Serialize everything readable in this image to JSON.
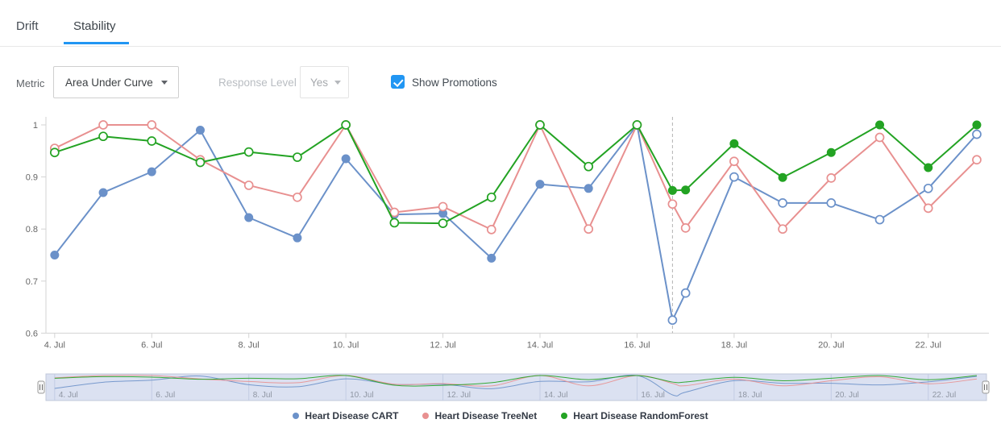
{
  "tabs": {
    "items": [
      {
        "label": "Drift",
        "active": false
      },
      {
        "label": "Stability",
        "active": true
      }
    ]
  },
  "controls": {
    "metric_label": "Metric",
    "metric_value": "Area Under Curve",
    "response_label": "Response Level",
    "response_value": "Yes",
    "show_promotions_label": "Show Promotions",
    "show_promotions_checked": true
  },
  "colors": {
    "accent_blue": "#2196f3",
    "axis_text": "#666666",
    "axis_line": "#d3d3d3",
    "promo_line": "#b3b3b3",
    "navigator_bg": "#dbe1f1",
    "navigator_border": "#c0c8da",
    "navigator_grid": "#c3cce4",
    "navigator_text": "#8f96a3",
    "handle_fill": "#f7f7f7",
    "handle_stroke": "#999999"
  },
  "chart_data": {
    "type": "line",
    "title": "",
    "xlabel": "",
    "ylabel": "",
    "x_unit": "day of July",
    "ylim": [
      0.6,
      1.0
    ],
    "gridlines": "none",
    "legend_position": "bottom",
    "x": [
      4,
      5,
      6,
      7,
      8,
      9,
      10,
      11,
      12,
      13,
      14,
      15,
      16,
      16.73,
      17,
      18,
      19,
      20,
      21,
      22,
      23
    ],
    "promo_index": 13,
    "promotion_line_x": 16.73,
    "x_axis_ticks": [
      {
        "x": 4,
        "label": "4. Jul"
      },
      {
        "x": 6,
        "label": "6. Jul"
      },
      {
        "x": 8,
        "label": "8. Jul"
      },
      {
        "x": 10,
        "label": "10. Jul"
      },
      {
        "x": 12,
        "label": "12. Jul"
      },
      {
        "x": 14,
        "label": "14. Jul"
      },
      {
        "x": 16,
        "label": "16. Jul"
      },
      {
        "x": 18,
        "label": "18. Jul"
      },
      {
        "x": 20,
        "label": "20. Jul"
      },
      {
        "x": 22,
        "label": "22. Jul"
      }
    ],
    "y_axis_ticks": [
      {
        "v": 1.0,
        "label": "1"
      },
      {
        "v": 0.9,
        "label": "0.9"
      },
      {
        "v": 0.8,
        "label": "0.8"
      },
      {
        "v": 0.7,
        "label": "0.7"
      },
      {
        "v": 0.6,
        "label": "0.6"
      }
    ],
    "series": [
      {
        "name": "Heart Disease CART",
        "color": "#6b91c9",
        "marker_before_promo": "filled",
        "marker_from_promo": "open",
        "values": [
          0.75,
          0.87,
          0.91,
          0.99,
          0.822,
          0.783,
          0.935,
          0.828,
          0.83,
          0.744,
          0.886,
          0.878,
          1.0,
          0.625,
          0.677,
          0.9,
          0.85,
          0.85,
          0.818,
          0.878,
          0.982
        ]
      },
      {
        "name": "Heart Disease TreeNet",
        "color": "#e89090",
        "marker_before_promo": "open",
        "marker_from_promo": "open",
        "values": [
          0.955,
          1.0,
          1.0,
          0.933,
          0.884,
          0.861,
          1.0,
          0.832,
          0.843,
          0.799,
          1.0,
          0.8,
          1.0,
          0.848,
          0.802,
          0.93,
          0.8,
          0.898,
          0.976,
          0.84,
          0.933
        ]
      },
      {
        "name": "Heart Disease RandomForest",
        "color": "#23a323",
        "marker_before_promo": "open",
        "marker_from_promo": "filled",
        "values": [
          0.947,
          0.978,
          0.969,
          0.928,
          0.948,
          0.938,
          1.0,
          0.812,
          0.811,
          0.861,
          1.0,
          0.92,
          1.0,
          0.874,
          0.875,
          0.964,
          0.899,
          0.947,
          1.0,
          0.918,
          1.0
        ]
      }
    ],
    "navigator": {
      "visible": true,
      "tick_labels": [
        "4. Jul",
        "6. Jul",
        "8. Jul",
        "10. Jul",
        "12. Jul",
        "14. Jul",
        "16. Jul",
        "18. Jul",
        "20. Jul",
        "22. Jul"
      ]
    }
  }
}
